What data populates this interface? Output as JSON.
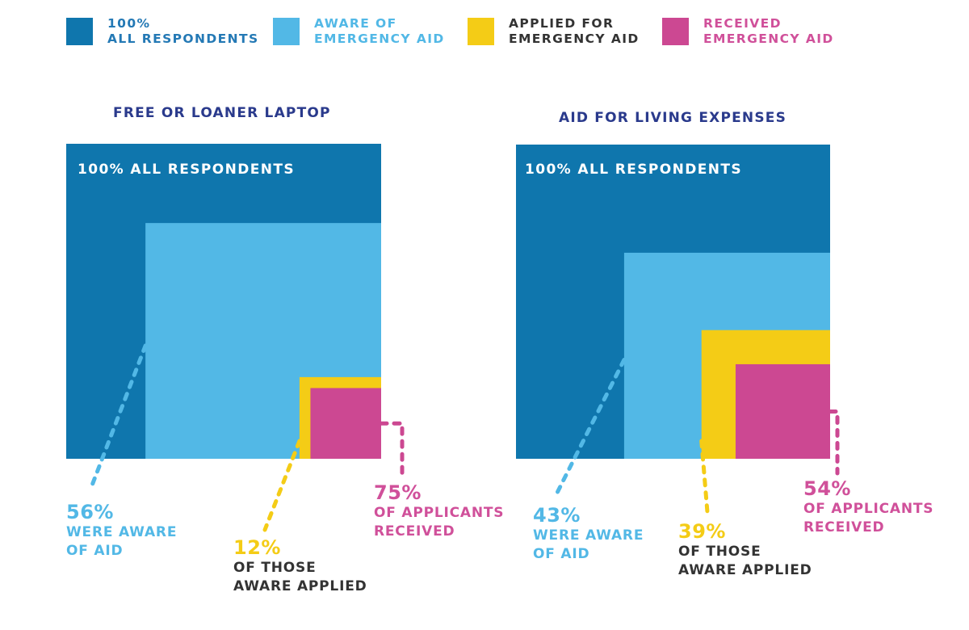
{
  "colors": {
    "all": "#0f76ad",
    "aware": "#52b8e6",
    "applied": "#f4cc16",
    "received": "#cc4892",
    "title": "#2a3a8c",
    "dark_text": "#333333"
  },
  "legend": [
    {
      "key": "all",
      "line1": "100%",
      "line2": "ALL RESPONDENTS",
      "text_color": "#2479b5"
    },
    {
      "key": "aware",
      "line1": "AWARE OF",
      "line2": "EMERGENCY AID",
      "text_color": "#52b8e6"
    },
    {
      "key": "applied",
      "line1": "APPLIED FOR",
      "line2": "EMERGENCY AID",
      "text_color": "#333333"
    },
    {
      "key": "received",
      "line1": "RECEIVED",
      "line2": "EMERGENCY AID",
      "text_color": "#d0509a"
    }
  ],
  "chart_data": [
    {
      "type": "nested-square",
      "title": "FREE OR LOANER LAPTOP",
      "base_label": "100% ALL RESPONDENTS",
      "values": {
        "all": 100,
        "aware": 56,
        "applied_of_aware": 12,
        "received_of_applied": 75
      },
      "annotations": [
        {
          "key": "aware",
          "pct": "56%",
          "lines": [
            "WERE AWARE",
            "OF AID"
          ]
        },
        {
          "key": "applied",
          "pct": "12%",
          "lines": [
            "OF THOSE",
            "AWARE APPLIED"
          ]
        },
        {
          "key": "received",
          "pct": "75%",
          "lines": [
            "OF APPLICANTS",
            "RECEIVED"
          ]
        }
      ]
    },
    {
      "type": "nested-square",
      "title": "AID FOR LIVING EXPENSES",
      "base_label": "100% ALL RESPONDENTS",
      "values": {
        "all": 100,
        "aware": 43,
        "applied_of_aware": 39,
        "received_of_applied": 54
      },
      "annotations": [
        {
          "key": "aware",
          "pct": "43%",
          "lines": [
            "WERE AWARE",
            "OF AID"
          ]
        },
        {
          "key": "applied",
          "pct": "39%",
          "lines": [
            "OF THOSE",
            "AWARE APPLIED"
          ]
        },
        {
          "key": "received",
          "pct": "54%",
          "lines": [
            "OF APPLICANTS",
            "RECEIVED"
          ]
        }
      ]
    }
  ]
}
